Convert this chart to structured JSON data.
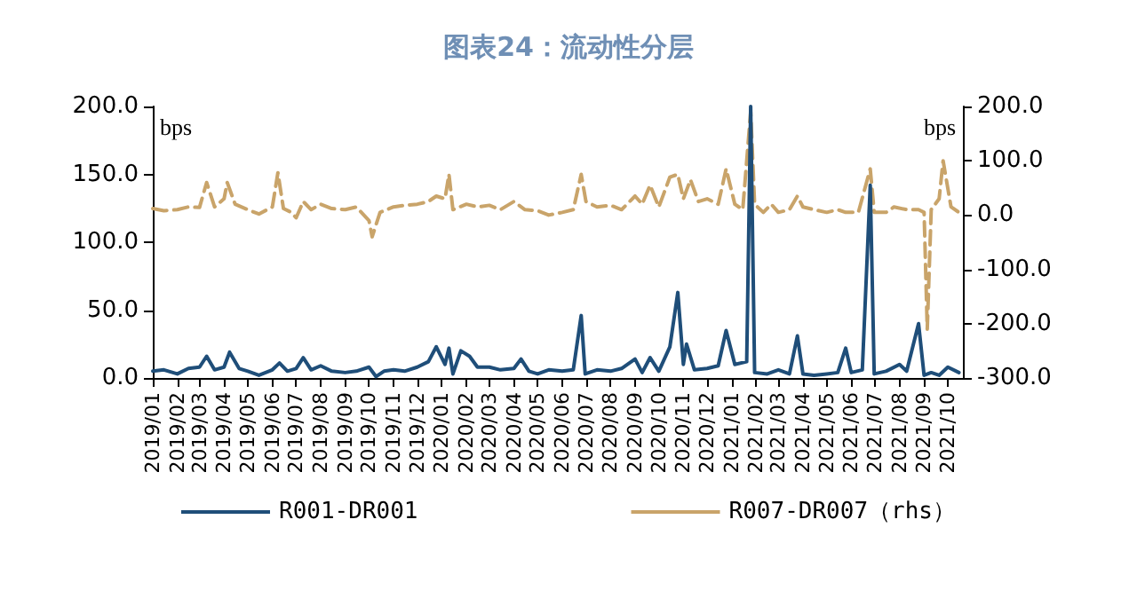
{
  "chart_data": {
    "type": "line",
    "title": "图表24：流动性分层",
    "ylabel": "bps",
    "y2label": "bps",
    "xlim": [
      "2019-01-01",
      "2021-10-20"
    ],
    "xticks": [
      {
        "value": "2019-01",
        "label": "2019/01"
      },
      {
        "value": "2019-02",
        "label": "2019/02"
      },
      {
        "value": "2019-03",
        "label": "2019/03"
      },
      {
        "value": "2019-04",
        "label": "2019/04"
      },
      {
        "value": "2019-05",
        "label": "2019/05"
      },
      {
        "value": "2019-06",
        "label": "2019/06"
      },
      {
        "value": "2019-07",
        "label": "2019/07"
      },
      {
        "value": "2019-08",
        "label": "2019/08"
      },
      {
        "value": "2019-09",
        "label": "2019/09"
      },
      {
        "value": "2019-10",
        "label": "2019/10"
      },
      {
        "value": "2019-11",
        "label": "2019/11"
      },
      {
        "value": "2019-12",
        "label": "2019/12"
      },
      {
        "value": "2020-01",
        "label": "2020/01"
      },
      {
        "value": "2020-02",
        "label": "2020/02"
      },
      {
        "value": "2020-03",
        "label": "2020/03"
      },
      {
        "value": "2020-04",
        "label": "2020/04"
      },
      {
        "value": "2020-05",
        "label": "2020/05"
      },
      {
        "value": "2020-06",
        "label": "2020/06"
      },
      {
        "value": "2020-07",
        "label": "2020/07"
      },
      {
        "value": "2020-08",
        "label": "2020/08"
      },
      {
        "value": "2020-09",
        "label": "2020/09"
      },
      {
        "value": "2020-10",
        "label": "2020/10"
      },
      {
        "value": "2020-11",
        "label": "2020/11"
      },
      {
        "value": "2020-12",
        "label": "2020/12"
      },
      {
        "value": "2021-01",
        "label": "2021/01"
      },
      {
        "value": "2021-02",
        "label": "2021/02"
      },
      {
        "value": "2021-03",
        "label": "2021/03"
      },
      {
        "value": "2021-04",
        "label": "2021/04"
      },
      {
        "value": "2021-05",
        "label": "2021/05"
      },
      {
        "value": "2021-06",
        "label": "2021/06"
      },
      {
        "value": "2021-07",
        "label": "2021/07"
      },
      {
        "value": "2021-08",
        "label": "2021/08"
      },
      {
        "value": "2021-09",
        "label": "2021/09"
      },
      {
        "value": "2021-10",
        "label": "2021/10"
      }
    ],
    "ylim": [
      0,
      200
    ],
    "yticks": [
      {
        "value": 0,
        "label": "0.0"
      },
      {
        "value": 50,
        "label": "50.0"
      },
      {
        "value": 100,
        "label": "100.0"
      },
      {
        "value": 150,
        "label": "150.0"
      },
      {
        "value": 200,
        "label": "200.0"
      }
    ],
    "y2lim": [
      -300,
      200
    ],
    "y2ticks": [
      {
        "value": -300,
        "label": "-300.0"
      },
      {
        "value": -200,
        "label": "-200.0"
      },
      {
        "value": -100,
        "label": "-100.0"
      },
      {
        "value": 0,
        "label": "0.0"
      },
      {
        "value": 100,
        "label": "100.0"
      },
      {
        "value": 200,
        "label": "200.0"
      }
    ],
    "grid": false,
    "legend": "bottom",
    "marker": "none",
    "series": [
      {
        "name": "R001-DR001",
        "color": "#1f4e79",
        "line_style": "solid",
        "x": [
          "2019-01-01",
          "2019-01-15",
          "2019-02-01",
          "2019-02-15",
          "2019-03-01",
          "2019-03-10",
          "2019-03-20",
          "2019-04-01",
          "2019-04-08",
          "2019-04-20",
          "2019-05-01",
          "2019-05-15",
          "2019-06-01",
          "2019-06-10",
          "2019-06-20",
          "2019-07-01",
          "2019-07-10",
          "2019-07-20",
          "2019-08-01",
          "2019-08-15",
          "2019-09-01",
          "2019-09-15",
          "2019-10-01",
          "2019-10-10",
          "2019-10-20",
          "2019-11-01",
          "2019-11-15",
          "2019-12-01",
          "2019-12-15",
          "2019-12-25",
          "2020-01-05",
          "2020-01-10",
          "2020-01-15",
          "2020-01-25",
          "2020-02-05",
          "2020-02-15",
          "2020-03-01",
          "2020-03-15",
          "2020-04-01",
          "2020-04-10",
          "2020-04-20",
          "2020-05-01",
          "2020-05-15",
          "2020-06-01",
          "2020-06-15",
          "2020-06-25",
          "2020-06-30",
          "2020-07-15",
          "2020-08-01",
          "2020-08-15",
          "2020-09-01",
          "2020-09-10",
          "2020-09-20",
          "2020-10-01",
          "2020-10-15",
          "2020-10-25",
          "2020-11-01",
          "2020-11-05",
          "2020-11-15",
          "2020-12-01",
          "2020-12-15",
          "2020-12-25",
          "2021-01-05",
          "2021-01-20",
          "2021-01-25",
          "2021-01-30",
          "2021-02-15",
          "2021-03-01",
          "2021-03-15",
          "2021-03-25",
          "2021-04-01",
          "2021-04-15",
          "2021-05-01",
          "2021-05-15",
          "2021-05-25",
          "2021-06-01",
          "2021-06-15",
          "2021-06-25",
          "2021-06-30",
          "2021-07-15",
          "2021-08-01",
          "2021-08-10",
          "2021-08-25",
          "2021-09-01",
          "2021-09-10",
          "2021-09-20",
          "2021-10-01",
          "2021-10-15"
        ],
        "values": [
          5,
          6,
          3,
          7,
          8,
          16,
          6,
          8,
          19,
          7,
          5,
          2,
          6,
          11,
          5,
          7,
          15,
          6,
          9,
          5,
          4,
          5,
          8,
          1,
          5,
          6,
          5,
          8,
          12,
          23,
          10,
          22,
          3,
          20,
          16,
          8,
          8,
          6,
          7,
          14,
          5,
          3,
          6,
          5,
          6,
          46,
          3,
          6,
          5,
          7,
          14,
          4,
          15,
          5,
          23,
          63,
          10,
          25,
          6,
          7,
          9,
          35,
          10,
          12,
          200,
          4,
          3,
          6,
          3,
          31,
          3,
          2,
          3,
          4,
          22,
          4,
          6,
          142,
          3,
          5,
          10,
          5,
          40,
          2,
          4,
          2,
          8,
          4
        ]
      },
      {
        "name": "R007-DR007（rhs）",
        "color": "#c9a46a",
        "line_style": "dashed",
        "axis": "y2",
        "x": [
          "2019-01-01",
          "2019-01-15",
          "2019-02-01",
          "2019-02-15",
          "2019-03-01",
          "2019-03-10",
          "2019-03-20",
          "2019-04-01",
          "2019-04-05",
          "2019-04-15",
          "2019-05-01",
          "2019-05-15",
          "2019-06-01",
          "2019-06-08",
          "2019-06-15",
          "2019-06-25",
          "2019-07-01",
          "2019-07-10",
          "2019-07-20",
          "2019-08-01",
          "2019-08-15",
          "2019-09-01",
          "2019-09-15",
          "2019-10-01",
          "2019-10-05",
          "2019-10-15",
          "2019-11-01",
          "2019-11-15",
          "2019-12-01",
          "2019-12-15",
          "2019-12-25",
          "2020-01-05",
          "2020-01-10",
          "2020-01-15",
          "2020-02-01",
          "2020-02-15",
          "2020-03-01",
          "2020-03-15",
          "2020-04-01",
          "2020-04-15",
          "2020-05-01",
          "2020-05-15",
          "2020-06-01",
          "2020-06-15",
          "2020-06-25",
          "2020-07-01",
          "2020-07-15",
          "2020-08-01",
          "2020-08-15",
          "2020-09-01",
          "2020-09-10",
          "2020-09-20",
          "2020-10-01",
          "2020-10-15",
          "2020-10-25",
          "2020-11-01",
          "2020-11-10",
          "2020-11-20",
          "2020-12-01",
          "2020-12-15",
          "2020-12-25",
          "2021-01-05",
          "2021-01-15",
          "2021-01-25",
          "2021-01-30",
          "2021-02-10",
          "2021-02-20",
          "2021-03-01",
          "2021-03-15",
          "2021-03-25",
          "2021-04-01",
          "2021-04-15",
          "2021-05-01",
          "2021-05-15",
          "2021-05-25",
          "2021-06-10",
          "2021-06-25",
          "2021-06-30",
          "2021-07-15",
          "2021-07-25",
          "2021-08-10",
          "2021-08-25",
          "2021-09-01",
          "2021-09-05",
          "2021-09-10",
          "2021-09-20",
          "2021-09-25",
          "2021-10-05",
          "2021-10-15"
        ],
        "values": [
          12,
          8,
          10,
          15,
          14,
          60,
          15,
          30,
          60,
          20,
          10,
          2,
          15,
          78,
          12,
          5,
          -5,
          25,
          10,
          20,
          12,
          10,
          15,
          -10,
          -40,
          5,
          15,
          18,
          20,
          25,
          35,
          30,
          75,
          10,
          20,
          15,
          18,
          10,
          25,
          10,
          8,
          0,
          5,
          10,
          75,
          25,
          15,
          18,
          10,
          35,
          20,
          55,
          15,
          70,
          75,
          30,
          65,
          25,
          30,
          20,
          85,
          20,
          10,
          190,
          20,
          5,
          20,
          5,
          10,
          35,
          15,
          10,
          5,
          10,
          5,
          5,
          85,
          5,
          5,
          15,
          10,
          10,
          5,
          -210,
          10,
          30,
          100,
          15,
          5
        ]
      }
    ]
  }
}
